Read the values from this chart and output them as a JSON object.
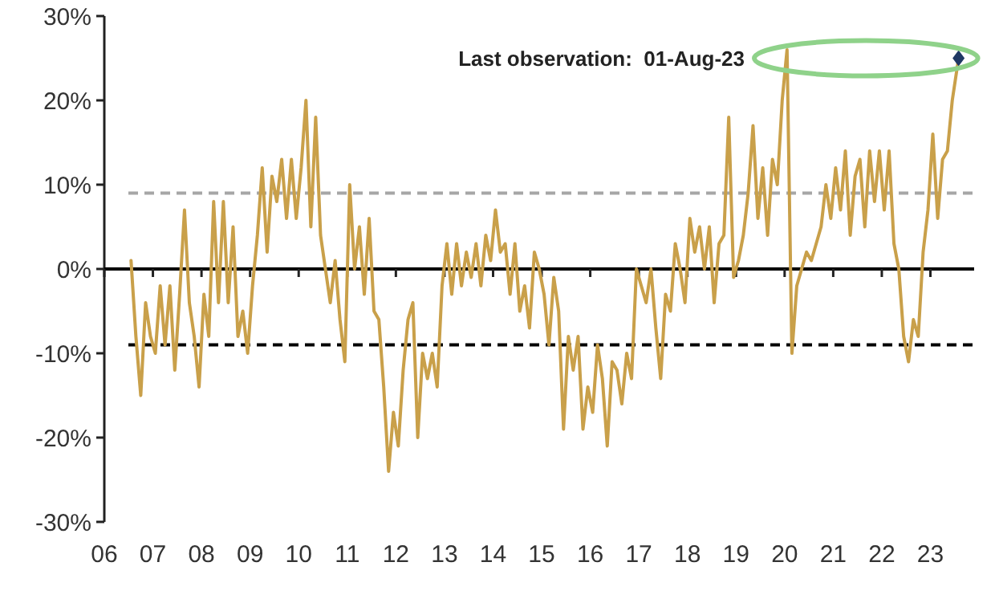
{
  "chart_data": {
    "type": "line",
    "xlim": [
      2006,
      2023.9
    ],
    "xticks": [
      {
        "value": 2006,
        "label": "06"
      },
      {
        "value": 2007,
        "label": "07"
      },
      {
        "value": 2008,
        "label": "08"
      },
      {
        "value": 2009,
        "label": "09"
      },
      {
        "value": 2010,
        "label": "10"
      },
      {
        "value": 2011,
        "label": "11"
      },
      {
        "value": 2012,
        "label": "12"
      },
      {
        "value": 2013,
        "label": "13"
      },
      {
        "value": 2014,
        "label": "14"
      },
      {
        "value": 2015,
        "label": "15"
      },
      {
        "value": 2016,
        "label": "16"
      },
      {
        "value": 2017,
        "label": "17"
      },
      {
        "value": 2018,
        "label": "18"
      },
      {
        "value": 2019,
        "label": "19"
      },
      {
        "value": 2020,
        "label": "20"
      },
      {
        "value": 2021,
        "label": "21"
      },
      {
        "value": 2022,
        "label": "22"
      },
      {
        "value": 2023,
        "label": "23"
      }
    ],
    "ylim": [
      -30,
      30
    ],
    "yticks": [
      {
        "value": -30,
        "label": "-30%"
      },
      {
        "value": -20,
        "label": "-20%"
      },
      {
        "value": -10,
        "label": "-10%"
      },
      {
        "value": 0,
        "label": "0%"
      },
      {
        "value": 10,
        "label": "10%"
      },
      {
        "value": 20,
        "label": "20%"
      },
      {
        "value": 30,
        "label": "30%"
      }
    ],
    "line_style": "solid",
    "marker": "none",
    "ref_lines": [
      {
        "axis": "y",
        "value": 0,
        "color": "#000000",
        "line_style": "solid"
      },
      {
        "axis": "y",
        "value": 9,
        "color": "#a6a6a6",
        "line_style": "dashed"
      },
      {
        "axis": "y",
        "value": -9,
        "color": "#000000",
        "line_style": "dashed"
      }
    ],
    "annotations": [
      "Last observation:  01-Aug-23"
    ],
    "series": [
      {
        "color": "#c9a04a",
        "x": [
          2006.55,
          2006.65,
          2006.75,
          2006.85,
          2006.95,
          2007.05,
          2007.15,
          2007.25,
          2007.35,
          2007.45,
          2007.55,
          2007.65,
          2007.75,
          2007.85,
          2007.95,
          2008.05,
          2008.15,
          2008.25,
          2008.35,
          2008.45,
          2008.55,
          2008.65,
          2008.75,
          2008.85,
          2008.95,
          2009.05,
          2009.15,
          2009.25,
          2009.35,
          2009.45,
          2009.55,
          2009.65,
          2009.75,
          2009.85,
          2009.95,
          2010.05,
          2010.15,
          2010.25,
          2010.35,
          2010.45,
          2010.55,
          2010.65,
          2010.75,
          2010.85,
          2010.95,
          2011.05,
          2011.15,
          2011.25,
          2011.35,
          2011.45,
          2011.55,
          2011.65,
          2011.75,
          2011.85,
          2011.95,
          2012.05,
          2012.15,
          2012.25,
          2012.35,
          2012.45,
          2012.55,
          2012.65,
          2012.75,
          2012.85,
          2012.95,
          2013.05,
          2013.15,
          2013.25,
          2013.35,
          2013.45,
          2013.55,
          2013.65,
          2013.75,
          2013.85,
          2013.95,
          2014.05,
          2014.15,
          2014.25,
          2014.35,
          2014.45,
          2014.55,
          2014.65,
          2014.75,
          2014.85,
          2014.95,
          2015.05,
          2015.15,
          2015.25,
          2015.35,
          2015.45,
          2015.55,
          2015.65,
          2015.75,
          2015.85,
          2015.95,
          2016.05,
          2016.15,
          2016.25,
          2016.35,
          2016.45,
          2016.55,
          2016.65,
          2016.75,
          2016.85,
          2016.95,
          2017.05,
          2017.15,
          2017.25,
          2017.35,
          2017.45,
          2017.55,
          2017.65,
          2017.75,
          2017.85,
          2017.95,
          2018.05,
          2018.15,
          2018.25,
          2018.35,
          2018.45,
          2018.55,
          2018.65,
          2018.75,
          2018.85,
          2018.95,
          2019.05,
          2019.15,
          2019.25,
          2019.35,
          2019.45,
          2019.55,
          2019.65,
          2019.75,
          2019.85,
          2019.95,
          2020.05,
          2020.15,
          2020.25,
          2020.35,
          2020.45,
          2020.55,
          2020.65,
          2020.75,
          2020.85,
          2020.95,
          2021.05,
          2021.15,
          2021.25,
          2021.35,
          2021.45,
          2021.55,
          2021.65,
          2021.75,
          2021.85,
          2021.95,
          2022.05,
          2022.15,
          2022.25,
          2022.35,
          2022.45,
          2022.55,
          2022.65,
          2022.75,
          2022.85,
          2022.95,
          2023.05,
          2023.15,
          2023.25,
          2023.35,
          2023.45,
          2023.58
        ],
        "values": [
          1,
          -8,
          -15,
          -4,
          -8,
          -10,
          -2,
          -9,
          -2,
          -12,
          -3,
          7,
          -4,
          -8,
          -14,
          -3,
          -8,
          8,
          -4,
          8,
          -4,
          5,
          -8,
          -5,
          -10,
          -2,
          4,
          12,
          2,
          11,
          8,
          13,
          6,
          13,
          6,
          12,
          20,
          5,
          18,
          4,
          0,
          -4,
          1,
          -6,
          -11,
          10,
          0,
          5,
          -3,
          6,
          -5,
          -6,
          -14,
          -24,
          -17,
          -21,
          -12,
          -6,
          -4,
          -20,
          -10,
          -13,
          -10,
          -14,
          -2,
          3,
          -3,
          3,
          -2,
          2,
          -1,
          3,
          -2,
          4,
          1,
          7,
          2,
          3,
          -3,
          3,
          -5,
          -2,
          -7,
          2,
          0,
          -3,
          -9,
          -1,
          -5,
          -19,
          -8,
          -12,
          -8,
          -19,
          -14,
          -17,
          -9,
          -13,
          -21,
          -11,
          -12,
          -16,
          -10,
          -13,
          0,
          -2,
          -4,
          0,
          -7,
          -13,
          -3,
          -5,
          3,
          0,
          -4,
          6,
          2,
          5,
          0,
          5,
          -4,
          3,
          4,
          18,
          -1,
          1,
          4,
          9,
          17,
          6,
          12,
          4,
          13,
          10,
          20,
          26,
          -10,
          -2,
          0,
          2,
          1,
          3,
          5,
          10,
          6,
          12,
          7,
          14,
          4,
          11,
          13,
          5,
          14,
          8,
          14,
          7,
          14,
          3,
          0,
          -8,
          -11,
          -6,
          -8,
          2,
          7,
          16,
          6,
          13,
          14,
          20,
          25
        ]
      },
      {
        "type": "scatter",
        "marker": "diamond",
        "color": "#1f3864",
        "x": [
          2023.58
        ],
        "values": [
          25
        ]
      }
    ]
  }
}
